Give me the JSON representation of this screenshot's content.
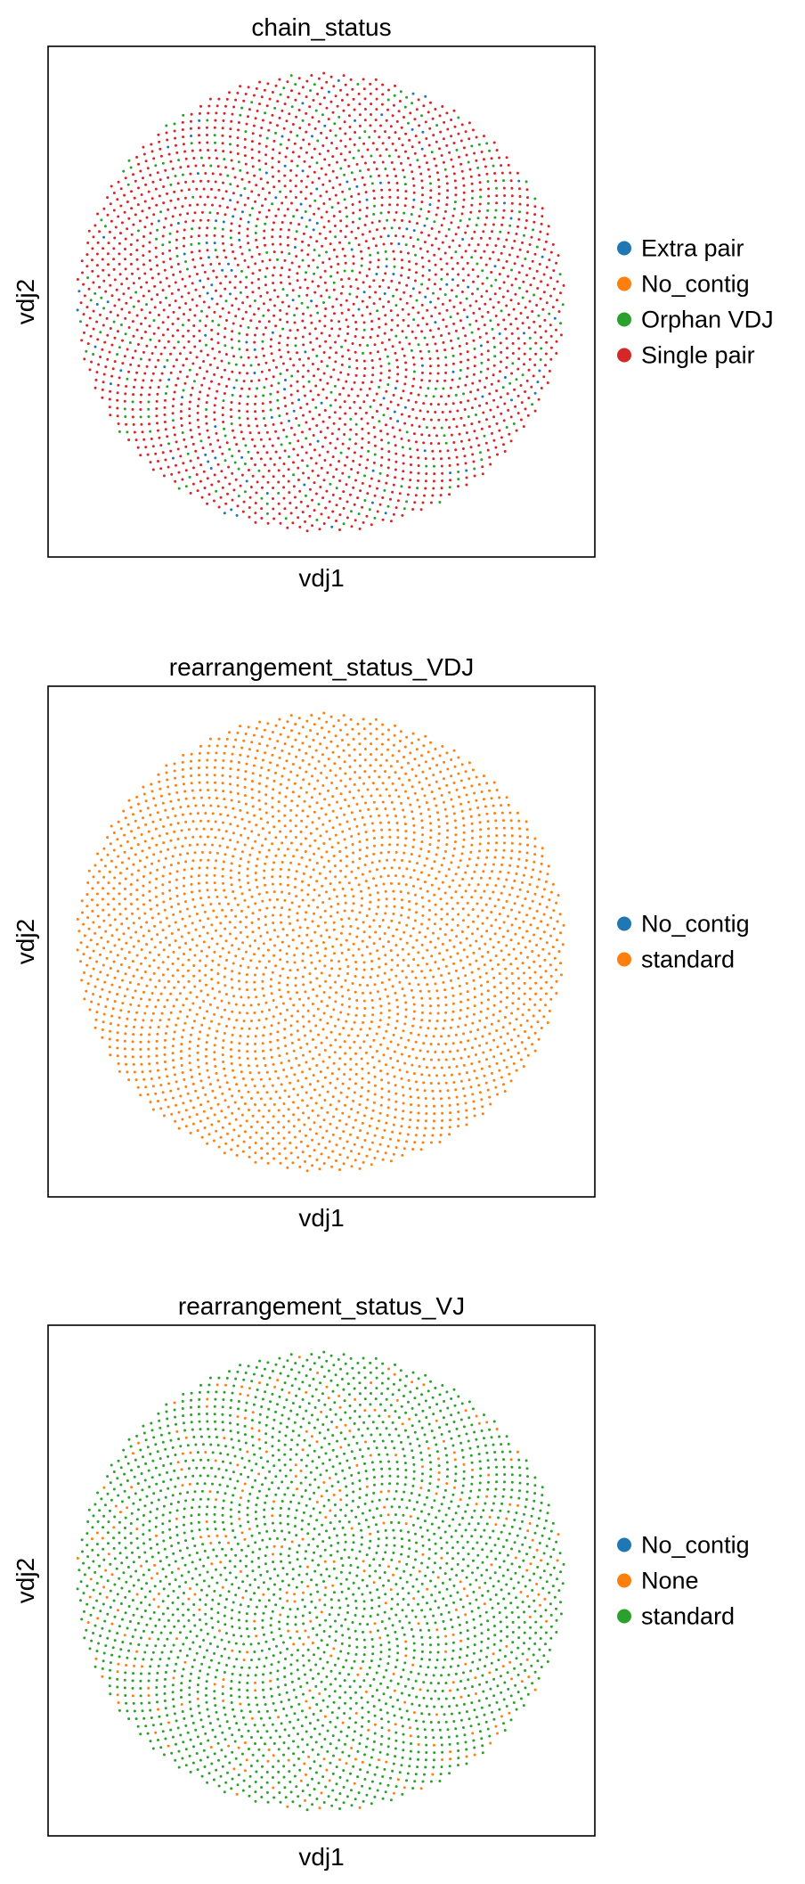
{
  "chart_data": [
    {
      "type": "scatter",
      "title": "chain_status",
      "xlabel": "vdj1",
      "ylabel": "vdj2",
      "legend_position": "right",
      "legend": [
        {
          "label": "Extra pair",
          "color": "#1f77b4"
        },
        {
          "label": "No_contig",
          "color": "#ff7f0e"
        },
        {
          "label": "Orphan VDJ",
          "color": "#2ca02c"
        },
        {
          "label": "Single pair",
          "color": "#d62728"
        }
      ],
      "point_distribution": "dense circular disc of small points (about 3000 cells)",
      "category_fractions": {
        "Extra pair": 0.06,
        "No_contig": 0.0,
        "Orphan VDJ": 0.14,
        "Single pair": 0.8
      }
    },
    {
      "type": "scatter",
      "title": "rearrangement_status_VDJ",
      "xlabel": "vdj1",
      "ylabel": "vdj2",
      "legend_position": "right",
      "legend": [
        {
          "label": "No_contig",
          "color": "#1f77b4"
        },
        {
          "label": "standard",
          "color": "#ff7f0e"
        }
      ],
      "point_distribution": "dense circular disc of small points (about 3000 cells)",
      "category_fractions": {
        "No_contig": 0.0,
        "standard": 1.0
      }
    },
    {
      "type": "scatter",
      "title": "rearrangement_status_VJ",
      "xlabel": "vdj1",
      "ylabel": "vdj2",
      "legend_position": "right",
      "legend": [
        {
          "label": "No_contig",
          "color": "#1f77b4"
        },
        {
          "label": "None",
          "color": "#ff7f0e"
        },
        {
          "label": "standard",
          "color": "#2ca02c"
        }
      ],
      "point_distribution": "dense circular disc of small points (about 3000 cells)",
      "category_fractions": {
        "No_contig": 0.0,
        "None": 0.14,
        "standard": 0.86
      }
    }
  ]
}
